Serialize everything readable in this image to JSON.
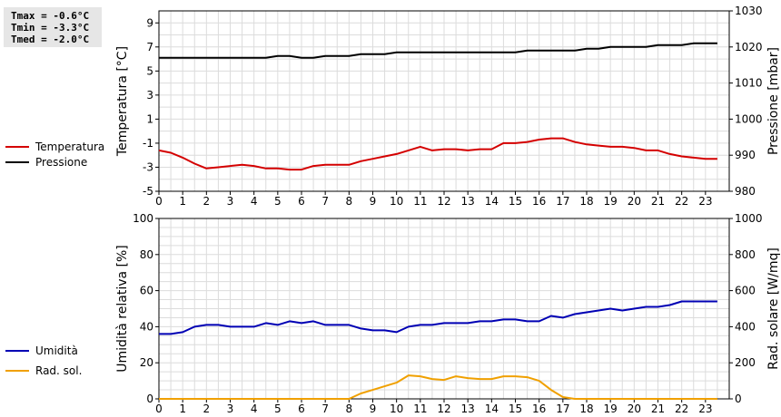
{
  "stats": {
    "tmax": "Tmax = -0.6°C",
    "tmin": "Tmin = -3.3°C",
    "tmed": "Tmed = -2.0°C"
  },
  "legends": {
    "top": [
      {
        "label": "Temperatura",
        "color": "#d40000"
      },
      {
        "label": "Pressione",
        "color": "#000000"
      }
    ],
    "bottom": [
      {
        "label": "Umidità",
        "color": "#0000b4"
      },
      {
        "label": "Rad. sol.",
        "color": "#f0a000"
      }
    ]
  },
  "chart_data": [
    {
      "type": "line",
      "xlim": [
        0,
        24
      ],
      "x_ticks": [
        "0",
        "1",
        "2",
        "3",
        "4",
        "5",
        "6",
        "7",
        "8",
        "9",
        "10",
        "11",
        "12",
        "13",
        "14",
        "15",
        "16",
        "17",
        "18",
        "19",
        "20",
        "21",
        "22",
        "23"
      ],
      "ylabel_left": "Temperatura [°C]",
      "ylabel_right": "Pressione [mbar]",
      "ylim_left": [
        -5,
        10
      ],
      "ylim_right": [
        980,
        1030
      ],
      "y_ticks_left": [
        "-5",
        "-3",
        "-1",
        "1",
        "3",
        "5",
        "7",
        "9"
      ],
      "y_ticks_right": [
        "980",
        "990",
        "1000",
        "1010",
        "1020",
        "1030"
      ],
      "grid": true,
      "series": [
        {
          "name": "Temperatura",
          "axis": "left",
          "color": "#d40000",
          "x": [
            0,
            0.5,
            1,
            1.5,
            2,
            2.5,
            3,
            3.5,
            4,
            4.5,
            5,
            5.5,
            6,
            6.5,
            7,
            7.5,
            8,
            8.5,
            9,
            9.5,
            10,
            10.5,
            11,
            11.5,
            12,
            12.5,
            13,
            13.5,
            14,
            14.5,
            15,
            15.5,
            16,
            16.5,
            17,
            17.5,
            18,
            18.5,
            19,
            19.5,
            20,
            20.5,
            21,
            21.5,
            22,
            22.5,
            23,
            23.5
          ],
          "values": [
            -1.6,
            -1.8,
            -2.2,
            -2.7,
            -3.1,
            -3.0,
            -2.9,
            -2.8,
            -2.9,
            -3.1,
            -3.1,
            -3.2,
            -3.2,
            -2.9,
            -2.8,
            -2.8,
            -2.8,
            -2.5,
            -2.3,
            -2.1,
            -1.9,
            -1.6,
            -1.3,
            -1.6,
            -1.5,
            -1.5,
            -1.6,
            -1.5,
            -1.5,
            -1.0,
            -1.0,
            -0.9,
            -0.7,
            -0.6,
            -0.6,
            -0.9,
            -1.1,
            -1.2,
            -1.3,
            -1.3,
            -1.4,
            -1.6,
            -1.6,
            -1.9,
            -2.1,
            -2.2,
            -2.3,
            -2.3
          ]
        },
        {
          "name": "Pressione",
          "axis": "right",
          "color": "#000000",
          "x": [
            0,
            0.5,
            1,
            1.5,
            2,
            2.5,
            3,
            3.5,
            4,
            4.5,
            5,
            5.5,
            6,
            6.5,
            7,
            7.5,
            8,
            8.5,
            9,
            9.5,
            10,
            10.5,
            11,
            11.5,
            12,
            12.5,
            13,
            13.5,
            14,
            14.5,
            15,
            15.5,
            16,
            16.5,
            17,
            17.5,
            18,
            18.5,
            19,
            19.5,
            20,
            20.5,
            21,
            21.5,
            22,
            22.5,
            23,
            23.5
          ],
          "values": [
            1017,
            1017,
            1017,
            1017,
            1017,
            1017,
            1017,
            1017,
            1017,
            1017,
            1017.5,
            1017.5,
            1017,
            1017,
            1017.5,
            1017.5,
            1017.5,
            1018,
            1018,
            1018,
            1018.5,
            1018.5,
            1018.5,
            1018.5,
            1018.5,
            1018.5,
            1018.5,
            1018.5,
            1018.5,
            1018.5,
            1018.5,
            1019,
            1019,
            1019,
            1019,
            1019,
            1019.5,
            1019.5,
            1020,
            1020,
            1020,
            1020,
            1020.5,
            1020.5,
            1020.5,
            1021,
            1021,
            1021
          ]
        }
      ]
    },
    {
      "type": "line",
      "xlim": [
        0,
        24
      ],
      "x_ticks": [
        "0",
        "1",
        "2",
        "3",
        "4",
        "5",
        "6",
        "7",
        "8",
        "9",
        "10",
        "11",
        "12",
        "13",
        "14",
        "15",
        "16",
        "17",
        "18",
        "19",
        "20",
        "21",
        "22",
        "23"
      ],
      "ylabel_left": "Umidità relativa [%]",
      "ylabel_right": "Rad. solare [W/mq]",
      "ylim_left": [
        0,
        100
      ],
      "ylim_right": [
        0,
        1000
      ],
      "y_ticks_left": [
        "0",
        "20",
        "40",
        "60",
        "80",
        "100"
      ],
      "y_ticks_right": [
        "0",
        "200",
        "400",
        "600",
        "800",
        "1000"
      ],
      "grid": true,
      "series": [
        {
          "name": "Umidità",
          "axis": "left",
          "color": "#0000b4",
          "x": [
            0,
            0.5,
            1,
            1.5,
            2,
            2.5,
            3,
            3.5,
            4,
            4.5,
            5,
            5.5,
            6,
            6.5,
            7,
            7.5,
            8,
            8.5,
            9,
            9.5,
            10,
            10.5,
            11,
            11.5,
            12,
            12.5,
            13,
            13.5,
            14,
            14.5,
            15,
            15.5,
            16,
            16.5,
            17,
            17.5,
            18,
            18.5,
            19,
            19.5,
            20,
            20.5,
            21,
            21.5,
            22,
            22.5,
            23,
            23.5
          ],
          "values": [
            36,
            36,
            37,
            40,
            41,
            41,
            40,
            40,
            40,
            42,
            41,
            43,
            42,
            43,
            41,
            41,
            41,
            39,
            38,
            38,
            37,
            40,
            41,
            41,
            42,
            42,
            42,
            43,
            43,
            44,
            44,
            43,
            43,
            46,
            45,
            47,
            48,
            49,
            50,
            49,
            50,
            51,
            51,
            52,
            54,
            54,
            54,
            54
          ]
        },
        {
          "name": "Rad. sol.",
          "axis": "right",
          "color": "#f0a000",
          "x": [
            0,
            0.5,
            1,
            1.5,
            2,
            2.5,
            3,
            3.5,
            4,
            4.5,
            5,
            5.5,
            6,
            6.5,
            7,
            7.5,
            8,
            8.5,
            9,
            9.5,
            10,
            10.5,
            11,
            11.5,
            12,
            12.5,
            13,
            13.5,
            14,
            14.5,
            15,
            15.5,
            16,
            16.5,
            17,
            17.5,
            18,
            18.5,
            19,
            19.5,
            20,
            20.5,
            21,
            21.5,
            22,
            22.5,
            23,
            23.5
          ],
          "values": [
            0,
            0,
            0,
            0,
            0,
            0,
            0,
            0,
            0,
            0,
            0,
            0,
            0,
            0,
            0,
            0,
            0,
            30,
            50,
            70,
            90,
            130,
            125,
            110,
            105,
            125,
            115,
            110,
            110,
            125,
            125,
            120,
            100,
            50,
            10,
            0,
            0,
            0,
            0,
            0,
            0,
            0,
            0,
            0,
            0,
            0,
            0,
            0
          ]
        }
      ]
    }
  ]
}
